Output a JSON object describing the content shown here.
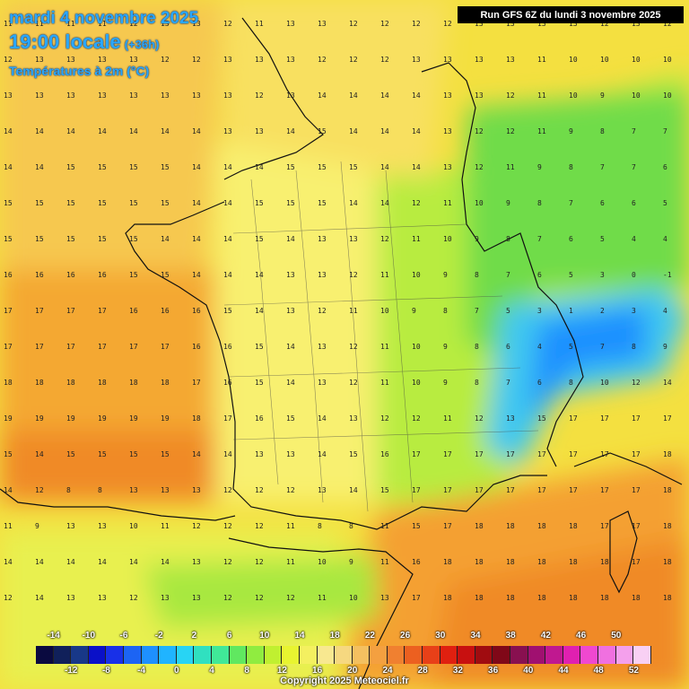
{
  "header": {
    "date": "mardi 4 novembre 2025",
    "time": "19:00 locale",
    "lead": "(+36h)",
    "variable": "Températures à 2m (°C)"
  },
  "run_info": "Run GFS 6Z du lundi 3 novembre 2025",
  "legend": {
    "top_ticks": [
      "-14",
      "-10",
      "-6",
      "-2",
      "2",
      "6",
      "10",
      "14",
      "18",
      "22",
      "26",
      "30",
      "34",
      "38",
      "42",
      "46",
      "50"
    ],
    "bottom_ticks": [
      "-12",
      "-8",
      "-4",
      "0",
      "4",
      "8",
      "12",
      "16",
      "20",
      "24",
      "28",
      "32",
      "36",
      "40",
      "44",
      "48",
      "52"
    ],
    "colors": [
      "#0a0a40",
      "#10205a",
      "#183888",
      "#0a10c8",
      "#1830e8",
      "#1c64f4",
      "#1e90ff",
      "#20b4ff",
      "#28d4f4",
      "#30e0c0",
      "#40e898",
      "#60e860",
      "#90ec40",
      "#c0f030",
      "#e8f430",
      "#f4f060",
      "#f8e890",
      "#f6d880",
      "#f4c060",
      "#f4a040",
      "#f08030",
      "#ec6020",
      "#e84018",
      "#e02010",
      "#c81010",
      "#a00c10",
      "#800818",
      "#881050",
      "#a01070",
      "#c01890",
      "#e020b0",
      "#f048d0",
      "#f070e0",
      "#f4a0ec",
      "#f8d0f4"
    ]
  },
  "copyright": "Copyright 2025 Meteociel.fr",
  "map_values": {
    "rows": [
      [
        "11",
        "11",
        "11",
        "11",
        "12",
        "13",
        "13",
        "12",
        "11",
        "13",
        "13",
        "12",
        "12",
        "12",
        "12",
        "13",
        "13",
        "13",
        "13",
        "12",
        "13",
        "12"
      ],
      [
        "12",
        "13",
        "13",
        "13",
        "13",
        "12",
        "12",
        "13",
        "13",
        "13",
        "12",
        "12",
        "12",
        "13",
        "13",
        "13",
        "13",
        "11",
        "10",
        "10",
        "10",
        "10"
      ],
      [
        "13",
        "13",
        "13",
        "13",
        "13",
        "13",
        "13",
        "13",
        "12",
        "13",
        "14",
        "14",
        "14",
        "14",
        "13",
        "13",
        "12",
        "11",
        "10",
        "9",
        "10",
        "10"
      ],
      [
        "14",
        "14",
        "14",
        "14",
        "14",
        "14",
        "14",
        "13",
        "13",
        "14",
        "15",
        "14",
        "14",
        "14",
        "13",
        "12",
        "12",
        "11",
        "9",
        "8",
        "7",
        "7"
      ],
      [
        "14",
        "14",
        "15",
        "15",
        "15",
        "15",
        "14",
        "14",
        "14",
        "15",
        "15",
        "15",
        "14",
        "14",
        "13",
        "12",
        "11",
        "9",
        "8",
        "7",
        "7",
        "6"
      ],
      [
        "15",
        "15",
        "15",
        "15",
        "15",
        "15",
        "14",
        "14",
        "15",
        "15",
        "15",
        "14",
        "14",
        "12",
        "11",
        "10",
        "9",
        "8",
        "7",
        "6",
        "6",
        "5"
      ],
      [
        "15",
        "15",
        "15",
        "15",
        "15",
        "14",
        "14",
        "14",
        "15",
        "14",
        "13",
        "13",
        "12",
        "11",
        "10",
        "9",
        "8",
        "7",
        "6",
        "5",
        "4",
        "4"
      ],
      [
        "16",
        "16",
        "16",
        "16",
        "15",
        "15",
        "14",
        "14",
        "14",
        "13",
        "13",
        "12",
        "11",
        "10",
        "9",
        "8",
        "7",
        "6",
        "5",
        "3",
        "0",
        "-1"
      ],
      [
        "17",
        "17",
        "17",
        "17",
        "16",
        "16",
        "16",
        "15",
        "14",
        "13",
        "12",
        "11",
        "10",
        "9",
        "8",
        "7",
        "5",
        "3",
        "1",
        "2",
        "3",
        "4"
      ],
      [
        "17",
        "17",
        "17",
        "17",
        "17",
        "17",
        "16",
        "16",
        "15",
        "14",
        "13",
        "12",
        "11",
        "10",
        "9",
        "8",
        "6",
        "4",
        "5",
        "7",
        "8",
        "9"
      ],
      [
        "18",
        "18",
        "18",
        "18",
        "18",
        "18",
        "17",
        "16",
        "15",
        "14",
        "13",
        "12",
        "11",
        "10",
        "9",
        "8",
        "7",
        "6",
        "8",
        "10",
        "12",
        "14"
      ],
      [
        "19",
        "19",
        "19",
        "19",
        "19",
        "19",
        "18",
        "17",
        "16",
        "15",
        "14",
        "13",
        "12",
        "12",
        "11",
        "12",
        "13",
        "15",
        "17",
        "17",
        "17",
        "17"
      ],
      [
        "15",
        "14",
        "15",
        "15",
        "15",
        "15",
        "14",
        "14",
        "13",
        "13",
        "14",
        "15",
        "16",
        "17",
        "17",
        "17",
        "17",
        "17",
        "17",
        "17",
        "17",
        "18"
      ],
      [
        "14",
        "12",
        "8",
        "8",
        "13",
        "13",
        "13",
        "12",
        "12",
        "12",
        "13",
        "14",
        "15",
        "17",
        "17",
        "17",
        "17",
        "17",
        "17",
        "17",
        "17",
        "18"
      ],
      [
        "11",
        "9",
        "13",
        "13",
        "10",
        "11",
        "12",
        "12",
        "12",
        "11",
        "8",
        "8",
        "11",
        "15",
        "17",
        "18",
        "18",
        "18",
        "18",
        "17",
        "17",
        "18"
      ],
      [
        "14",
        "14",
        "14",
        "14",
        "14",
        "14",
        "13",
        "12",
        "12",
        "11",
        "10",
        "9",
        "11",
        "16",
        "18",
        "18",
        "18",
        "18",
        "18",
        "18",
        "17",
        "18"
      ],
      [
        "12",
        "14",
        "13",
        "13",
        "12",
        "13",
        "13",
        "12",
        "12",
        "12",
        "11",
        "10",
        "13",
        "17",
        "18",
        "18",
        "18",
        "18",
        "18",
        "18",
        "18",
        "18"
      ]
    ]
  }
}
